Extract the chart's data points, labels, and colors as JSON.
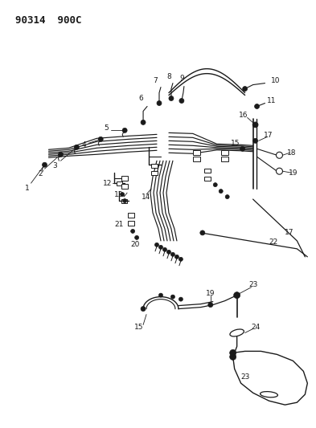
{
  "title": "90314  900C",
  "bg_color": "#ffffff",
  "line_color": "#1a1a1a",
  "title_fontsize": 9,
  "label_fontsize": 6.5,
  "fig_width": 3.93,
  "fig_height": 5.33,
  "dpi": 100
}
